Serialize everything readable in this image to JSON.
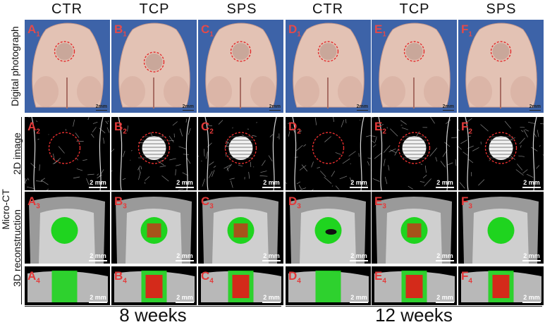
{
  "columns": [
    "CTR",
    "TCP",
    "SPS",
    "CTR",
    "TCP",
    "SPS"
  ],
  "row_labels": {
    "photo": "Digital photograph",
    "micro_ct": "Micro-CT",
    "image2d": "2D image",
    "recon": "3D reconstruction"
  },
  "panel_letters": [
    "A",
    "B",
    "C",
    "D",
    "E",
    "F"
  ],
  "row_subscripts": [
    "1",
    "2",
    "3",
    "4"
  ],
  "photo_scale": "2mm",
  "ct_scale": "2 mm",
  "weeks": [
    "8 weeks",
    "12 weeks"
  ],
  "colors": {
    "photo_bg": "#3d63a8",
    "circle": "#e22e2e",
    "scaffold_green": "#1fd41f",
    "new_bone_red": "#d42a1a"
  }
}
